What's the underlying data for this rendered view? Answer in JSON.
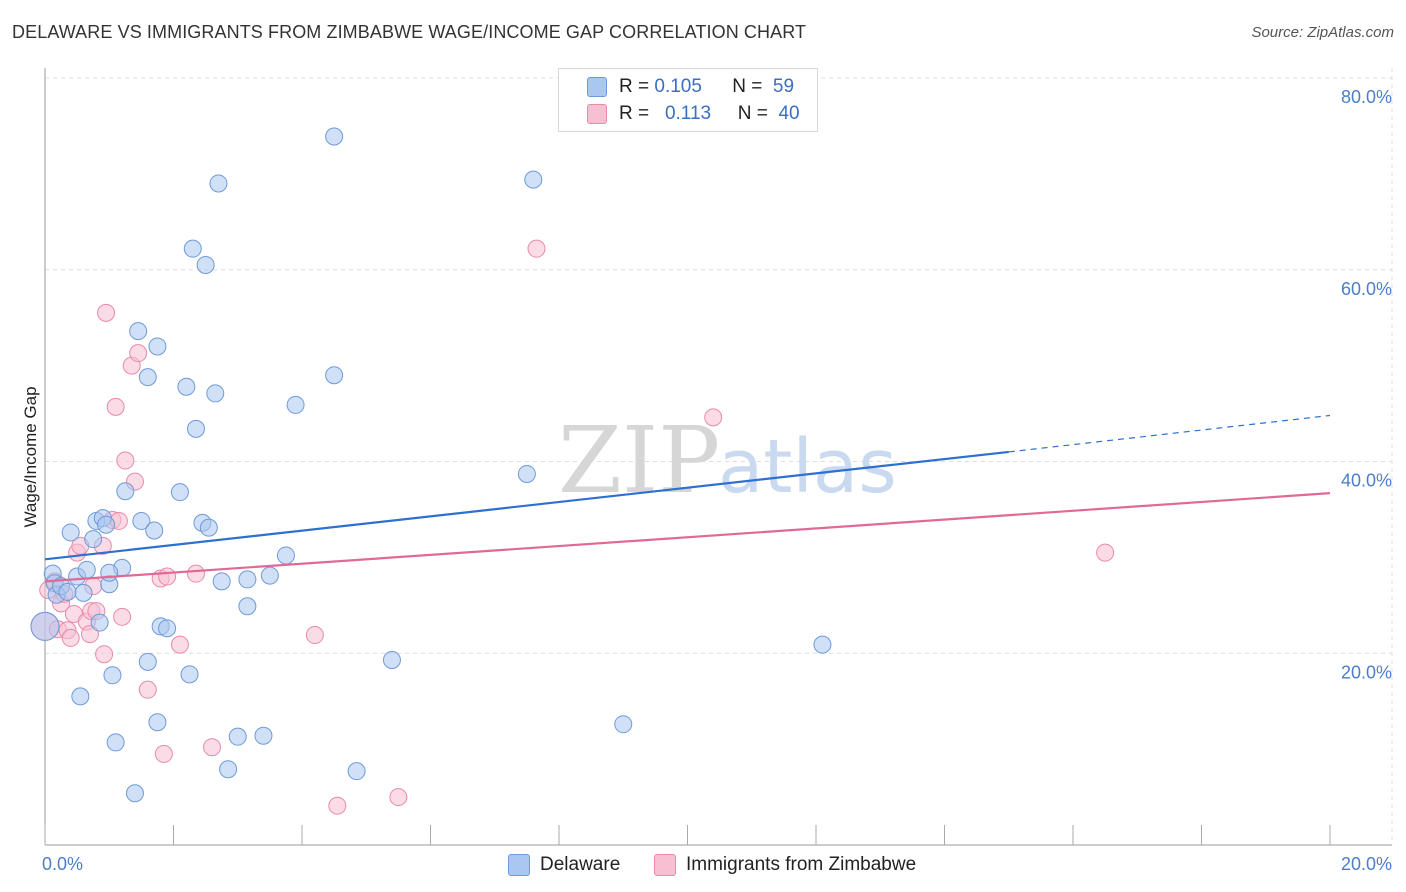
{
  "title": "DELAWARE VS IMMIGRANTS FROM ZIMBABWE WAGE/INCOME GAP CORRELATION CHART",
  "source": "Source: ZipAtlas.com",
  "watermark": {
    "zip": "ZIP",
    "atlas": "atlas"
  },
  "legend": {
    "rows": [
      {
        "r_label": "R =",
        "r_value": "0.105",
        "n_label": "N =",
        "n_value": "59"
      },
      {
        "r_label": "R =",
        "r_value": "0.113",
        "n_label": "N =",
        "n_value": "40"
      }
    ]
  },
  "bottom_legend": {
    "series1": "Delaware",
    "series2": "Immigrants from Zimbabwe"
  },
  "colors": {
    "blue_fill": "#a9c7f0",
    "blue_stroke": "#6f9ad8",
    "blue_line": "#2f6fcf",
    "pink_fill": "#f7bfd1",
    "pink_stroke": "#e98aab",
    "pink_line": "#e06a96",
    "grid": "#dddddd",
    "tick_text": "#4a7fc8"
  },
  "chart_data": {
    "type": "scatter",
    "title": "DELAWARE VS IMMIGRANTS FROM ZIMBABWE WAGE/INCOME GAP CORRELATION CHART",
    "xlabel": "",
    "ylabel": "Wage/Income Gap",
    "xlim": [
      0,
      20
    ],
    "ylim": [
      0,
      80
    ],
    "x_tick_labels": [
      {
        "value": 0,
        "label": "0.0%"
      },
      {
        "value": 20,
        "label": "20.0%"
      }
    ],
    "y_tick_labels": [
      {
        "value": 20,
        "label": "20.0%"
      },
      {
        "value": 40,
        "label": "40.0%"
      },
      {
        "value": 60,
        "label": "60.0%"
      },
      {
        "value": 80,
        "label": "80.0%"
      }
    ],
    "x_minor_ticks": [
      0,
      2,
      4,
      6,
      8,
      10,
      12,
      14,
      16,
      18,
      20
    ],
    "grid": true,
    "series": [
      {
        "name": "Delaware",
        "R": 0.105,
        "N": 59,
        "trend": {
          "x0": 0,
          "y0": 29.8,
          "x1": 15,
          "y1": 41.0,
          "dash_to_x": 20,
          "dash_to_y": 44.8
        },
        "points": [
          [
            0.0,
            22.8
          ],
          [
            0.12,
            28.3
          ],
          [
            0.15,
            27.3
          ],
          [
            0.18,
            26.1
          ],
          [
            0.25,
            27.0
          ],
          [
            0.35,
            26.4
          ],
          [
            0.4,
            32.6
          ],
          [
            0.5,
            28.0
          ],
          [
            0.55,
            15.5
          ],
          [
            0.65,
            28.7
          ],
          [
            0.75,
            31.9
          ],
          [
            0.8,
            33.8
          ],
          [
            0.85,
            23.2
          ],
          [
            0.9,
            34.1
          ],
          [
            0.95,
            33.4
          ],
          [
            1.0,
            27.2
          ],
          [
            1.05,
            17.7
          ],
          [
            1.1,
            10.7
          ],
          [
            1.2,
            28.9
          ],
          [
            1.25,
            36.9
          ],
          [
            1.4,
            5.4
          ],
          [
            1.45,
            53.6
          ],
          [
            1.5,
            33.8
          ],
          [
            1.6,
            48.8
          ],
          [
            1.6,
            19.1
          ],
          [
            1.7,
            32.8
          ],
          [
            1.75,
            12.8
          ],
          [
            1.75,
            52.0
          ],
          [
            1.8,
            22.8
          ],
          [
            1.9,
            22.6
          ],
          [
            2.1,
            36.8
          ],
          [
            2.2,
            47.8
          ],
          [
            2.25,
            17.8
          ],
          [
            2.3,
            62.2
          ],
          [
            2.35,
            43.4
          ],
          [
            2.45,
            33.6
          ],
          [
            2.5,
            60.5
          ],
          [
            2.55,
            33.1
          ],
          [
            2.65,
            47.1
          ],
          [
            2.7,
            69.0
          ],
          [
            2.75,
            27.5
          ],
          [
            2.85,
            7.9
          ],
          [
            3.0,
            11.3
          ],
          [
            3.15,
            24.9
          ],
          [
            3.15,
            27.7
          ],
          [
            3.4,
            11.4
          ],
          [
            3.5,
            28.1
          ],
          [
            3.75,
            30.2
          ],
          [
            3.9,
            45.9
          ],
          [
            4.5,
            49.0
          ],
          [
            4.5,
            73.9
          ],
          [
            4.85,
            7.7
          ],
          [
            5.4,
            19.3
          ],
          [
            7.5,
            38.7
          ],
          [
            7.6,
            69.4
          ],
          [
            9.0,
            12.6
          ],
          [
            12.1,
            20.9
          ],
          [
            0.6,
            26.3
          ],
          [
            1.0,
            28.4
          ]
        ]
      },
      {
        "name": "Immigrants from Zimbabwe",
        "R": 0.113,
        "N": 40,
        "trend": {
          "x0": 0,
          "y0": 27.5,
          "x1": 20,
          "y1": 36.7
        },
        "points": [
          [
            0.0,
            22.8
          ],
          [
            0.05,
            26.6
          ],
          [
            0.15,
            27.5
          ],
          [
            0.2,
            22.5
          ],
          [
            0.25,
            25.2
          ],
          [
            0.35,
            22.4
          ],
          [
            0.4,
            21.6
          ],
          [
            0.45,
            24.1
          ],
          [
            0.5,
            30.5
          ],
          [
            0.55,
            31.2
          ],
          [
            0.65,
            23.3
          ],
          [
            0.7,
            22.0
          ],
          [
            0.72,
            24.4
          ],
          [
            0.75,
            27.0
          ],
          [
            0.8,
            24.4
          ],
          [
            0.9,
            31.2
          ],
          [
            0.92,
            19.9
          ],
          [
            0.95,
            55.5
          ],
          [
            1.05,
            33.9
          ],
          [
            1.1,
            45.7
          ],
          [
            1.15,
            33.8
          ],
          [
            1.2,
            23.8
          ],
          [
            1.25,
            40.1
          ],
          [
            1.35,
            50.0
          ],
          [
            1.4,
            37.9
          ],
          [
            1.45,
            51.3
          ],
          [
            1.6,
            16.2
          ],
          [
            1.8,
            27.8
          ],
          [
            1.85,
            9.5
          ],
          [
            1.9,
            28.0
          ],
          [
            2.1,
            20.9
          ],
          [
            2.35,
            28.3
          ],
          [
            2.6,
            10.2
          ],
          [
            4.2,
            21.9
          ],
          [
            4.55,
            4.1
          ],
          [
            5.5,
            5.0
          ],
          [
            7.65,
            62.2
          ],
          [
            10.4,
            44.6
          ],
          [
            16.5,
            30.5
          ],
          [
            0.3,
            26.2
          ]
        ]
      }
    ]
  }
}
